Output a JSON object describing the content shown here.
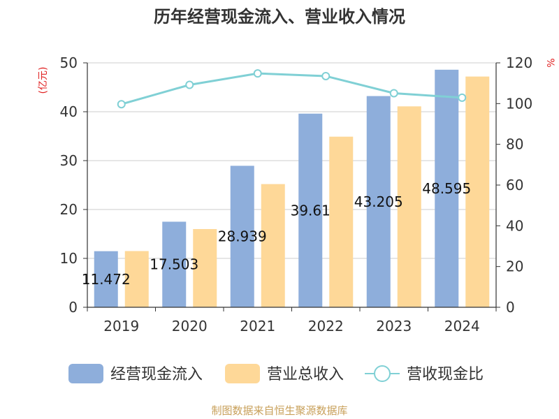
{
  "chart_data": {
    "type": "bar",
    "title": "历年经营现金流入、营业收入情况",
    "categories": [
      "2019",
      "2020",
      "2021",
      "2022",
      "2023",
      "2024"
    ],
    "series": [
      {
        "name": "经营现金流入",
        "type": "bar",
        "axis": "left",
        "color": "#8eaedb",
        "values": [
          11.472,
          17.503,
          28.939,
          39.61,
          43.205,
          48.595
        ]
      },
      {
        "name": "营业总收入",
        "type": "bar",
        "axis": "left",
        "color": "#fed898",
        "values": [
          11.5,
          16.0,
          25.2,
          34.9,
          41.1,
          47.2
        ]
      },
      {
        "name": "营收现金比",
        "type": "line",
        "axis": "right",
        "color": "#80d0d5",
        "values": [
          99.7,
          109.2,
          114.8,
          113.5,
          105.1,
          102.9
        ]
      }
    ],
    "data_labels": [
      "11.472",
      "17.503",
      "28.939",
      "39.61",
      "43.205",
      "48.595"
    ],
    "left_axis": {
      "unit": "(亿元)",
      "ylim": [
        0,
        50
      ],
      "ticks": [
        0,
        10,
        20,
        30,
        40,
        50
      ]
    },
    "right_axis": {
      "unit": "%",
      "ylim": [
        0,
        120
      ],
      "ticks": [
        0,
        20,
        40,
        60,
        80,
        100,
        120
      ]
    },
    "grid": true,
    "legend_position": "bottom"
  },
  "source": "制图数据来自恒生聚源数据库"
}
